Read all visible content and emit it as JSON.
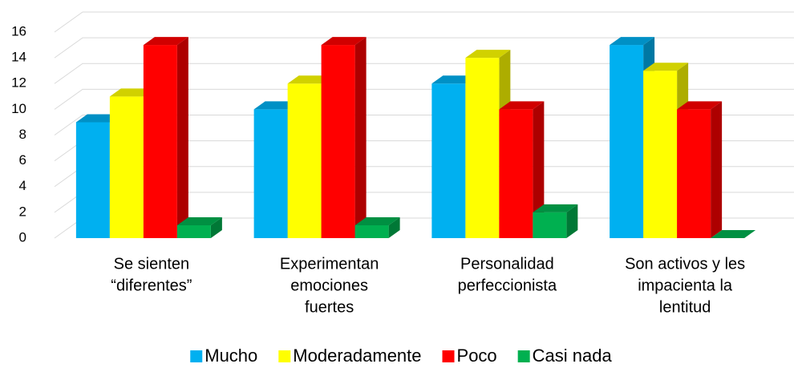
{
  "chart_data": {
    "type": "bar3d",
    "categories": [
      [
        "Se sienten",
        "“diferentes”"
      ],
      [
        "Experimentan",
        "emociones",
        "fuertes"
      ],
      [
        "Personalidad",
        "perfeccionista"
      ],
      [
        "Son activos y les",
        "impacienta la",
        "lentitud"
      ]
    ],
    "series": [
      {
        "name": "Mucho",
        "color": "#00b0f0",
        "values": [
          9,
          10,
          12,
          15
        ]
      },
      {
        "name": "Moderadamente",
        "color": "#ffff00",
        "values": [
          11,
          12,
          14,
          13
        ]
      },
      {
        "name": "Poco",
        "color": "#ff0000",
        "values": [
          15,
          15,
          10,
          10
        ]
      },
      {
        "name": "Casi nada",
        "color": "#00b050",
        "values": [
          1,
          1,
          2,
          0
        ]
      }
    ],
    "ylim": [
      0,
      16
    ],
    "yticks": [
      0,
      2,
      4,
      6,
      8,
      10,
      12,
      14,
      16
    ],
    "grid": true,
    "legend": "bottom"
  }
}
